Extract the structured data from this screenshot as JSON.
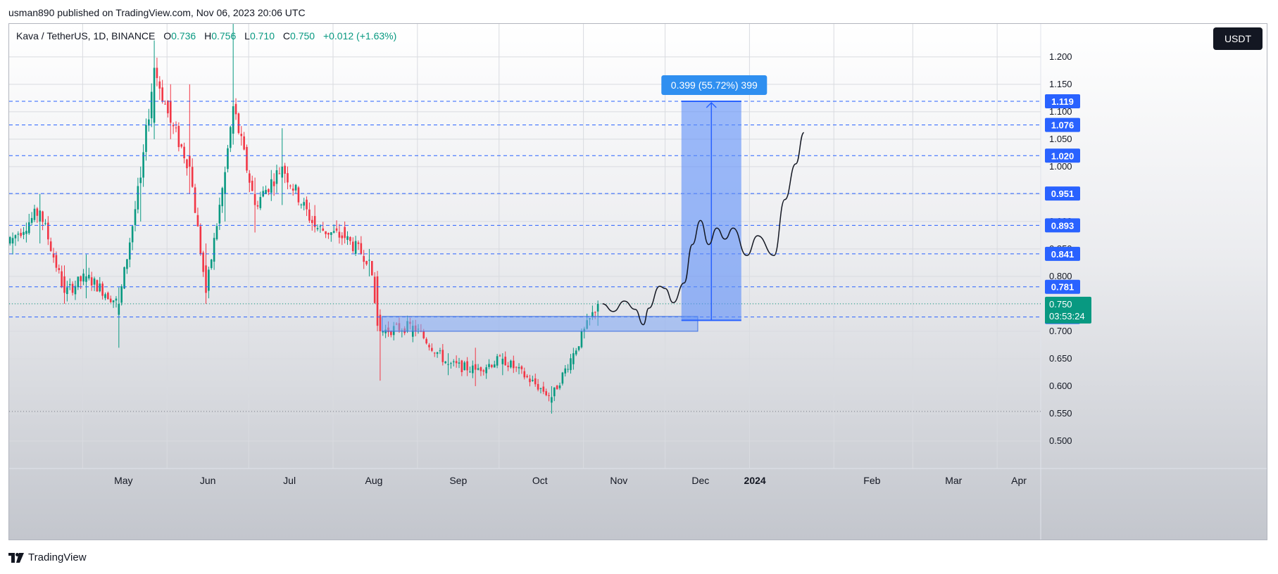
{
  "header": {
    "publish_text": "usman890 published on TradingView.com, Nov 06, 2023 20:06 UTC"
  },
  "legend": {
    "symbol": "Kava / TetherUS, 1D, BINANCE",
    "open_label": "O",
    "open_value": "0.736",
    "high_label": "H",
    "high_value": "0.756",
    "low_label": "L",
    "low_value": "0.710",
    "close_label": "C",
    "close_value": "0.750",
    "change": "+0.012 (+1.63%)"
  },
  "currency_button": "USDT",
  "footer": {
    "brand": "TradingView"
  },
  "colors": {
    "up": "#089981",
    "down": "#f23645",
    "level_line": "#2962ff",
    "level_label_bg": "#2962ff",
    "price_label_bg": "#089981",
    "measure_fill": "#5b8ef8",
    "measure_label_bg": "#2f8ff0",
    "zone_fill": "#7ea5f5"
  },
  "chart_data": {
    "type": "candlestick",
    "title": "Kava / TetherUS, 1D, BINANCE",
    "xlabel": "",
    "ylabel": "",
    "ylim": [
      0.45,
      1.26
    ],
    "y_ticks": [
      "1.200",
      "1.150",
      "1.100",
      "1.050",
      "1.000",
      "0.950",
      "0.900",
      "0.850",
      "0.800",
      "0.750",
      "0.700",
      "0.650",
      "0.600",
      "0.550",
      "0.500"
    ],
    "x_ticks": [
      "May",
      "Jun",
      "Jul",
      "Aug",
      "Sep",
      "Oct",
      "Nov",
      "Dec",
      "2024",
      "Feb",
      "Mar",
      "Apr"
    ],
    "x_range": [
      "2023-04-04",
      "2024-04-17"
    ],
    "grid": true,
    "ohlc_sample": [
      {
        "date": "2023-04-05",
        "open": 0.86,
        "high": 0.88,
        "low": 0.84,
        "close": 0.87
      },
      {
        "date": "2023-04-15",
        "open": 0.9,
        "high": 0.95,
        "low": 0.86,
        "close": 0.92
      },
      {
        "date": "2023-04-24",
        "open": 0.8,
        "high": 0.82,
        "low": 0.75,
        "close": 0.77
      },
      {
        "date": "2023-05-02",
        "open": 0.79,
        "high": 0.84,
        "low": 0.76,
        "close": 0.8
      },
      {
        "date": "2023-05-14",
        "open": 0.73,
        "high": 0.78,
        "low": 0.67,
        "close": 0.75
      },
      {
        "date": "2023-05-22",
        "open": 0.97,
        "high": 1.0,
        "low": 0.9,
        "close": 0.98
      },
      {
        "date": "2023-05-27",
        "open": 1.08,
        "high": 1.23,
        "low": 1.05,
        "close": 1.18
      },
      {
        "date": "2023-06-02",
        "open": 1.12,
        "high": 1.15,
        "low": 1.05,
        "close": 1.08
      },
      {
        "date": "2023-06-09",
        "open": 1.02,
        "high": 1.15,
        "low": 0.95,
        "close": 1.0
      },
      {
        "date": "2023-06-15",
        "open": 0.82,
        "high": 0.86,
        "low": 0.75,
        "close": 0.77
      },
      {
        "date": "2023-06-22",
        "open": 0.95,
        "high": 1.0,
        "low": 0.9,
        "close": 0.99
      },
      {
        "date": "2023-06-25",
        "open": 1.06,
        "high": 1.26,
        "low": 1.04,
        "close": 1.11
      },
      {
        "date": "2023-07-03",
        "open": 0.95,
        "high": 0.98,
        "low": 0.88,
        "close": 0.93
      },
      {
        "date": "2023-07-13",
        "open": 0.98,
        "high": 1.07,
        "low": 0.93,
        "close": 1.0
      },
      {
        "date": "2023-07-25",
        "open": 0.91,
        "high": 0.93,
        "low": 0.88,
        "close": 0.89
      },
      {
        "date": "2023-08-05",
        "open": 0.89,
        "high": 0.9,
        "low": 0.86,
        "close": 0.87
      },
      {
        "date": "2023-08-14",
        "open": 0.83,
        "high": 0.85,
        "low": 0.8,
        "close": 0.83
      },
      {
        "date": "2023-08-17",
        "open": 0.8,
        "high": 0.81,
        "low": 0.7,
        "close": 0.71
      },
      {
        "date": "2023-08-18",
        "open": 0.73,
        "high": 0.74,
        "low": 0.61,
        "close": 0.7
      },
      {
        "date": "2023-08-30",
        "open": 0.69,
        "high": 0.72,
        "low": 0.68,
        "close": 0.71
      },
      {
        "date": "2023-09-12",
        "open": 0.64,
        "high": 0.66,
        "low": 0.62,
        "close": 0.64
      },
      {
        "date": "2023-09-22",
        "open": 0.64,
        "high": 0.67,
        "low": 0.6,
        "close": 0.63
      },
      {
        "date": "2023-10-02",
        "open": 0.64,
        "high": 0.66,
        "low": 0.62,
        "close": 0.65
      },
      {
        "date": "2023-10-20",
        "open": 0.57,
        "high": 0.6,
        "low": 0.55,
        "close": 0.58
      },
      {
        "date": "2023-10-28",
        "open": 0.64,
        "high": 0.67,
        "low": 0.63,
        "close": 0.66
      },
      {
        "date": "2023-11-06",
        "open": 0.736,
        "high": 0.756,
        "low": 0.71,
        "close": 0.75
      }
    ],
    "last_price": {
      "value": "0.750",
      "countdown": "03:53:24"
    },
    "horizontal_levels": [
      "1.119",
      "1.076",
      "1.020",
      "0.951",
      "0.893",
      "0.841",
      "0.781",
      "0.726"
    ],
    "measure": {
      "label": "0.399 (55.72%) 399",
      "from": 0.72,
      "to": 1.119,
      "start": "2023-12-07",
      "end": "2023-12-29"
    },
    "support_zone": {
      "top": 0.727,
      "bottom": 0.7,
      "start": "2023-08-19",
      "end": "2023-12-13"
    },
    "projection_path": [
      {
        "date": "2023-11-08",
        "y": 0.75
      },
      {
        "date": "2023-11-12",
        "y": 0.736
      },
      {
        "date": "2023-11-16",
        "y": 0.755
      },
      {
        "date": "2023-11-20",
        "y": 0.74
      },
      {
        "date": "2023-11-23",
        "y": 0.712
      },
      {
        "date": "2023-11-25",
        "y": 0.742
      },
      {
        "date": "2023-11-29",
        "y": 0.782
      },
      {
        "date": "2023-12-01",
        "y": 0.778
      },
      {
        "date": "2023-12-04",
        "y": 0.752
      },
      {
        "date": "2023-12-08",
        "y": 0.788
      },
      {
        "date": "2023-12-11",
        "y": 0.858
      },
      {
        "date": "2023-12-14",
        "y": 0.902
      },
      {
        "date": "2023-12-17",
        "y": 0.858
      },
      {
        "date": "2023-12-20",
        "y": 0.888
      },
      {
        "date": "2023-12-23",
        "y": 0.868
      },
      {
        "date": "2023-12-26",
        "y": 0.888
      },
      {
        "date": "2023-12-31",
        "y": 0.838
      },
      {
        "date": "2024-01-04",
        "y": 0.874
      },
      {
        "date": "2024-01-10",
        "y": 0.838
      },
      {
        "date": "2024-01-14",
        "y": 0.94
      },
      {
        "date": "2024-01-18",
        "y": 1.005
      },
      {
        "date": "2024-01-21",
        "y": 1.062
      }
    ]
  }
}
